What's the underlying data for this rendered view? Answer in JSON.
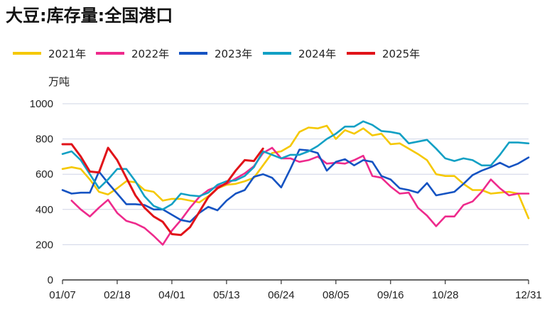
{
  "chart_data": {
    "type": "line",
    "title": "大豆:库存量:全国港口",
    "ylabel": "万吨",
    "xlabel": "",
    "ylim": [
      0,
      1000
    ],
    "yticks": [
      0,
      200,
      400,
      600,
      800,
      1000
    ],
    "xlim": [
      "01/07",
      "12/31"
    ],
    "xticks": [
      "01/07",
      "02/18",
      "04/01",
      "05/13",
      "06/24",
      "08/05",
      "09/16",
      "10/28",
      "12/31"
    ],
    "grid": true,
    "legend_position": "top",
    "series": [
      {
        "name": "2021年",
        "color": "#F5C800",
        "x": [
          "01/07",
          "01/14",
          "01/21",
          "01/28",
          "02/04",
          "02/11",
          "02/18",
          "02/25",
          "03/04",
          "03/11",
          "03/18",
          "03/25",
          "04/01",
          "04/08",
          "04/15",
          "04/22",
          "04/29",
          "05/06",
          "05/13",
          "05/20",
          "05/27",
          "06/03",
          "06/10",
          "06/17",
          "06/24",
          "07/01",
          "07/08",
          "07/15",
          "07/22",
          "07/29",
          "08/05",
          "08/12",
          "08/19",
          "08/26",
          "09/02",
          "09/09",
          "09/16",
          "09/23",
          "09/30",
          "10/07",
          "10/14",
          "10/21",
          "10/28",
          "11/04",
          "11/11",
          "11/18",
          "11/25",
          "12/02",
          "12/09",
          "12/16",
          "12/23",
          "12/31"
        ],
        "y": [
          630,
          640,
          630,
          570,
          500,
          485,
          520,
          560,
          555,
          510,
          500,
          450,
          460,
          460,
          450,
          440,
          475,
          520,
          540,
          545,
          560,
          580,
          650,
          720,
          730,
          760,
          840,
          865,
          860,
          875,
          800,
          850,
          830,
          860,
          820,
          830,
          770,
          775,
          745,
          715,
          680,
          600,
          590,
          590,
          545,
          510,
          510,
          490,
          495,
          500,
          490,
          350
        ]
      },
      {
        "name": "2022年",
        "color": "#EE2A8C",
        "x": [
          "01/14",
          "01/21",
          "01/28",
          "02/04",
          "02/11",
          "02/18",
          "02/25",
          "03/04",
          "03/11",
          "03/18",
          "03/25",
          "04/01",
          "04/08",
          "04/15",
          "04/22",
          "04/29",
          "05/06",
          "05/13",
          "05/20",
          "05/27",
          "06/03",
          "06/10",
          "06/17",
          "06/24",
          "07/01",
          "07/08",
          "07/15",
          "07/22",
          "07/29",
          "08/05",
          "08/12",
          "08/19",
          "08/26",
          "09/02",
          "09/09",
          "09/16",
          "09/23",
          "09/30",
          "10/07",
          "10/14",
          "10/21",
          "10/28",
          "11/04",
          "11/11",
          "11/18",
          "11/25",
          "12/02",
          "12/09",
          "12/16",
          "12/23",
          "12/31"
        ],
        "y": [
          450,
          400,
          360,
          410,
          455,
          380,
          335,
          320,
          295,
          250,
          200,
          280,
          340,
          410,
          470,
          510,
          530,
          545,
          575,
          605,
          645,
          720,
          750,
          690,
          690,
          670,
          680,
          700,
          660,
          665,
          660,
          680,
          705,
          590,
          580,
          530,
          490,
          495,
          410,
          365,
          305,
          360,
          360,
          425,
          445,
          500,
          570,
          520,
          480,
          490,
          490
        ]
      },
      {
        "name": "2023年",
        "color": "#1553C2",
        "x": [
          "01/07",
          "01/14",
          "01/21",
          "01/28",
          "02/04",
          "02/11",
          "02/18",
          "02/25",
          "03/04",
          "03/11",
          "03/18",
          "03/25",
          "04/01",
          "04/08",
          "04/15",
          "04/22",
          "04/29",
          "05/06",
          "05/13",
          "05/20",
          "05/27",
          "06/03",
          "06/10",
          "06/17",
          "06/24",
          "07/01",
          "07/08",
          "07/15",
          "07/22",
          "07/29",
          "08/05",
          "08/12",
          "08/19",
          "08/26",
          "09/02",
          "09/09",
          "09/16",
          "09/23",
          "09/30",
          "10/07",
          "10/14",
          "10/21",
          "10/28",
          "11/04",
          "11/11",
          "11/18",
          "11/25",
          "12/02",
          "12/09",
          "12/16",
          "12/23",
          "12/31"
        ],
        "y": [
          510,
          490,
          495,
          495,
          615,
          550,
          490,
          430,
          430,
          425,
          400,
          400,
          370,
          340,
          330,
          380,
          415,
          395,
          450,
          490,
          510,
          585,
          600,
          580,
          525,
          630,
          740,
          735,
          720,
          620,
          670,
          685,
          650,
          680,
          670,
          590,
          570,
          520,
          510,
          495,
          550,
          480,
          490,
          500,
          545,
          595,
          620,
          640,
          665,
          640,
          660,
          695
        ]
      },
      {
        "name": "2024年",
        "color": "#11A0C4",
        "x": [
          "01/07",
          "01/14",
          "01/21",
          "01/28",
          "02/04",
          "02/11",
          "02/18",
          "02/25",
          "03/04",
          "03/11",
          "03/18",
          "03/25",
          "04/01",
          "04/08",
          "04/15",
          "04/22",
          "04/29",
          "05/06",
          "05/13",
          "05/20",
          "05/27",
          "06/03",
          "06/10",
          "06/17",
          "06/24",
          "07/01",
          "07/08",
          "07/15",
          "07/22",
          "07/29",
          "08/05",
          "08/12",
          "08/19",
          "08/26",
          "09/02",
          "09/09",
          "09/16",
          "09/23",
          "09/30",
          "10/07",
          "10/14",
          "10/21",
          "10/28",
          "11/04",
          "11/11",
          "11/18",
          "11/25",
          "12/02",
          "12/09",
          "12/16",
          "12/23",
          "12/31"
        ],
        "y": [
          715,
          730,
          680,
          600,
          520,
          570,
          630,
          630,
          560,
          475,
          420,
          400,
          430,
          490,
          480,
          475,
          495,
          540,
          560,
          565,
          590,
          640,
          730,
          710,
          690,
          710,
          710,
          730,
          760,
          800,
          830,
          870,
          870,
          900,
          880,
          845,
          840,
          830,
          775,
          785,
          795,
          745,
          690,
          675,
          690,
          680,
          650,
          650,
          710,
          780,
          780,
          775
        ]
      },
      {
        "name": "2025年",
        "color": "#E11319",
        "x": [
          "01/07",
          "01/14",
          "01/21",
          "01/28",
          "02/04",
          "02/11",
          "02/18",
          "02/25",
          "03/04",
          "03/11",
          "03/18",
          "03/25",
          "04/01",
          "04/08",
          "04/15",
          "04/22",
          "04/29",
          "05/06",
          "05/13",
          "05/20",
          "05/27",
          "06/03",
          "06/10"
        ],
        "y": [
          770,
          770,
          700,
          615,
          610,
          750,
          680,
          580,
          480,
          410,
          360,
          330,
          260,
          255,
          300,
          385,
          470,
          520,
          550,
          620,
          680,
          675,
          745
        ]
      }
    ]
  }
}
